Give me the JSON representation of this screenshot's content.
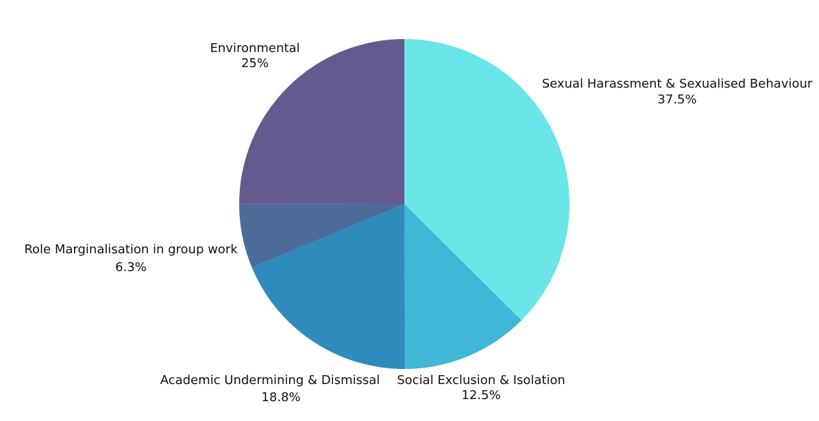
{
  "chart_data": {
    "type": "pie",
    "categories": [
      "Sexual Harassment & Sexualised Behaviour",
      "Social Exclusion & Isolation",
      "Academic Undermining & Dismissal",
      "Role Marginalisation in group work",
      "Environmental"
    ],
    "values": [
      37.5,
      12.5,
      18.8,
      6.3,
      25
    ],
    "value_labels": [
      "37.5%",
      "12.5%",
      "18.8%",
      "6.3%",
      "25%"
    ],
    "colors": [
      "#6ae5e8",
      "#42b6d6",
      "#2e8bbb",
      "#4d6b99",
      "#645a8f"
    ]
  }
}
